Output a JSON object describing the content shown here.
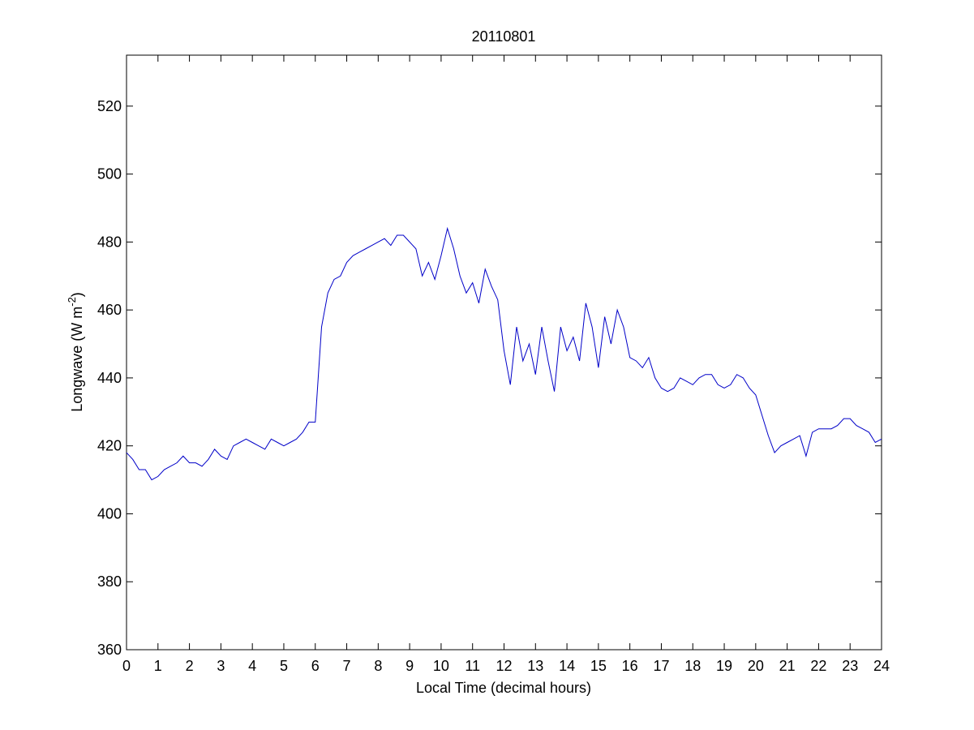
{
  "chart_data": {
    "type": "line",
    "title": "20110801",
    "xlabel": "Local Time (decimal hours)",
    "ylabel": {
      "text": "Longwave (W m",
      "superscript": "-2",
      "suffix": ")"
    },
    "color": "#0000c8",
    "x": [
      0,
      0.2,
      0.4,
      0.6,
      0.8,
      1,
      1.2,
      1.4,
      1.6,
      1.8,
      2,
      2.2,
      2.4,
      2.6,
      2.8,
      3,
      3.2,
      3.4,
      3.6,
      3.8,
      4,
      4.2,
      4.4,
      4.6,
      4.8,
      5,
      5.2,
      5.4,
      5.6,
      5.8,
      6,
      6.2,
      6.4,
      6.6,
      6.8,
      7,
      7.2,
      7.4,
      7.6,
      7.8,
      8,
      8.2,
      8.4,
      8.6,
      8.8,
      9,
      9.2,
      9.4,
      9.6,
      9.8,
      10,
      10.2,
      10.4,
      10.6,
      10.8,
      11,
      11.2,
      11.4,
      11.6,
      11.8,
      12,
      12.2,
      12.4,
      12.6,
      12.8,
      13,
      13.2,
      13.4,
      13.6,
      13.8,
      14,
      14.2,
      14.4,
      14.6,
      14.8,
      15,
      15.2,
      15.4,
      15.6,
      15.8,
      16,
      16.2,
      16.4,
      16.6,
      16.8,
      17,
      17.2,
      17.4,
      17.6,
      17.8,
      18,
      18.2,
      18.4,
      18.6,
      18.8,
      19,
      19.2,
      19.4,
      19.6,
      19.8,
      20,
      20.2,
      20.4,
      20.6,
      20.8,
      21,
      21.2,
      21.4,
      21.6,
      21.8,
      22,
      22.2,
      22.4,
      22.6,
      22.8,
      23,
      23.2,
      23.4,
      23.6,
      23.8,
      24
    ],
    "values": [
      418,
      416,
      413,
      413,
      410,
      411,
      413,
      414,
      415,
      417,
      415,
      415,
      414,
      416,
      419,
      417,
      416,
      420,
      421,
      422,
      421,
      420,
      419,
      422,
      421,
      420,
      421,
      422,
      424,
      427,
      427,
      455,
      465,
      469,
      470,
      474,
      476,
      477,
      478,
      479,
      480,
      481,
      479,
      482,
      482,
      480,
      478,
      470,
      474,
      469,
      476,
      484,
      478,
      470,
      465,
      468,
      462,
      472,
      467,
      463,
      448,
      438,
      455,
      445,
      450,
      441,
      455,
      445,
      436,
      455,
      448,
      452,
      445,
      462,
      455,
      443,
      458,
      450,
      460,
      455,
      446,
      445,
      443,
      446,
      440,
      437,
      436,
      437,
      440,
      439,
      438,
      440,
      441,
      441,
      438,
      437,
      438,
      441,
      440,
      437,
      435,
      429,
      423,
      418,
      420,
      421,
      422,
      423,
      417,
      424,
      425,
      425,
      425,
      426,
      428,
      428,
      426,
      425,
      424,
      421,
      422
    ],
    "xlim": [
      0,
      24
    ],
    "xticks": [
      0,
      1,
      2,
      3,
      4,
      5,
      6,
      7,
      8,
      9,
      10,
      11,
      12,
      13,
      14,
      15,
      16,
      17,
      18,
      19,
      20,
      21,
      22,
      23,
      24
    ],
    "ylim": [
      360,
      535
    ],
    "yticks": [
      360,
      380,
      400,
      420,
      440,
      460,
      480,
      500,
      520
    ],
    "grid": false
  }
}
